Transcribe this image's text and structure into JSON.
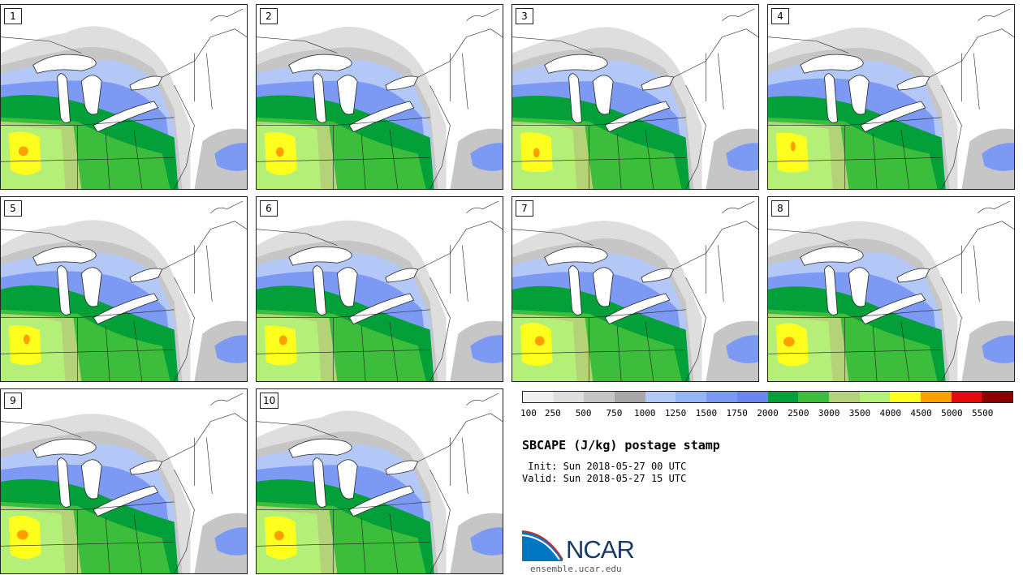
{
  "panels": [
    {
      "label": "1"
    },
    {
      "label": "2"
    },
    {
      "label": "3"
    },
    {
      "label": "4"
    },
    {
      "label": "5"
    },
    {
      "label": "6"
    },
    {
      "label": "7"
    },
    {
      "label": "8"
    },
    {
      "label": "9"
    },
    {
      "label": "10"
    }
  ],
  "legend": {
    "colors": [
      "#efefef",
      "#dedede",
      "#c6c6c6",
      "#a8a8a8",
      "#b4c8f8",
      "#96b4f8",
      "#7c9af4",
      "#6e84ee",
      "#03a03a",
      "#3cbe3c",
      "#b4d278",
      "#b4f078",
      "#ffff1e",
      "#ffa000",
      "#e60a0a",
      "#8c0000"
    ],
    "ticks": [
      "100",
      "250",
      "500",
      "750",
      "1000",
      "1250",
      "1500",
      "1750",
      "2000",
      "2500",
      "3000",
      "3500",
      "4000",
      "4500",
      "5000",
      "5500"
    ]
  },
  "title": "SBCAPE (J/kg) postage stamp",
  "init": " Init: Sun 2018-05-27 00 UTC",
  "valid": "Valid: Sun 2018-05-27 15 UTC",
  "logo": {
    "text": "NCAR",
    "site": "ensemble.ucar.edu",
    "brand_color": "#1a3a66",
    "accent": "#0077c0"
  }
}
